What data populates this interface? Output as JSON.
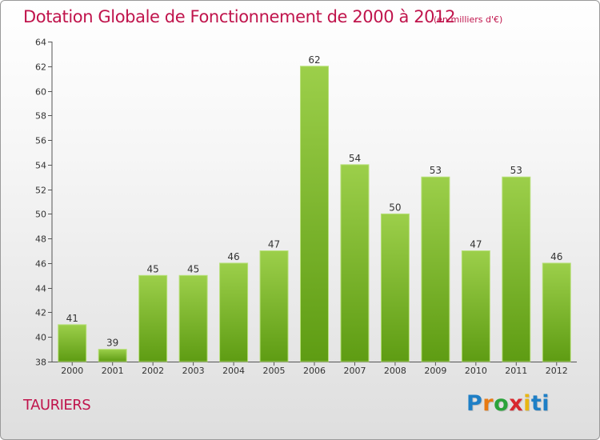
{
  "header": {
    "title": "Dotation Globale de Fonctionnement de 2000 à 2012",
    "unit": "(en milliers d'€)"
  },
  "footer": {
    "commune": "TAURIERS",
    "brand": "Proxiti"
  },
  "colors": {
    "title": "#c0144c",
    "bar_top": "#9ccf4a",
    "bar_bottom": "#5e9c13",
    "axis": "#555555"
  },
  "chart_data": {
    "type": "bar",
    "title": "Dotation Globale de Fonctionnement de 2000 à 2012",
    "subtitle": "(en milliers d'€)",
    "xlabel": "",
    "ylabel": "",
    "categories": [
      "2000",
      "2001",
      "2002",
      "2003",
      "2004",
      "2005",
      "2006",
      "2007",
      "2008",
      "2009",
      "2010",
      "2011",
      "2012"
    ],
    "values": [
      41,
      39,
      45,
      45,
      46,
      47,
      62,
      54,
      50,
      53,
      47,
      53,
      46
    ],
    "ylim": [
      38,
      64
    ],
    "yticks": [
      38,
      40,
      42,
      44,
      46,
      48,
      50,
      52,
      54,
      56,
      58,
      60,
      62,
      64
    ],
    "grid": false,
    "legend": "none",
    "data_labels": true
  }
}
